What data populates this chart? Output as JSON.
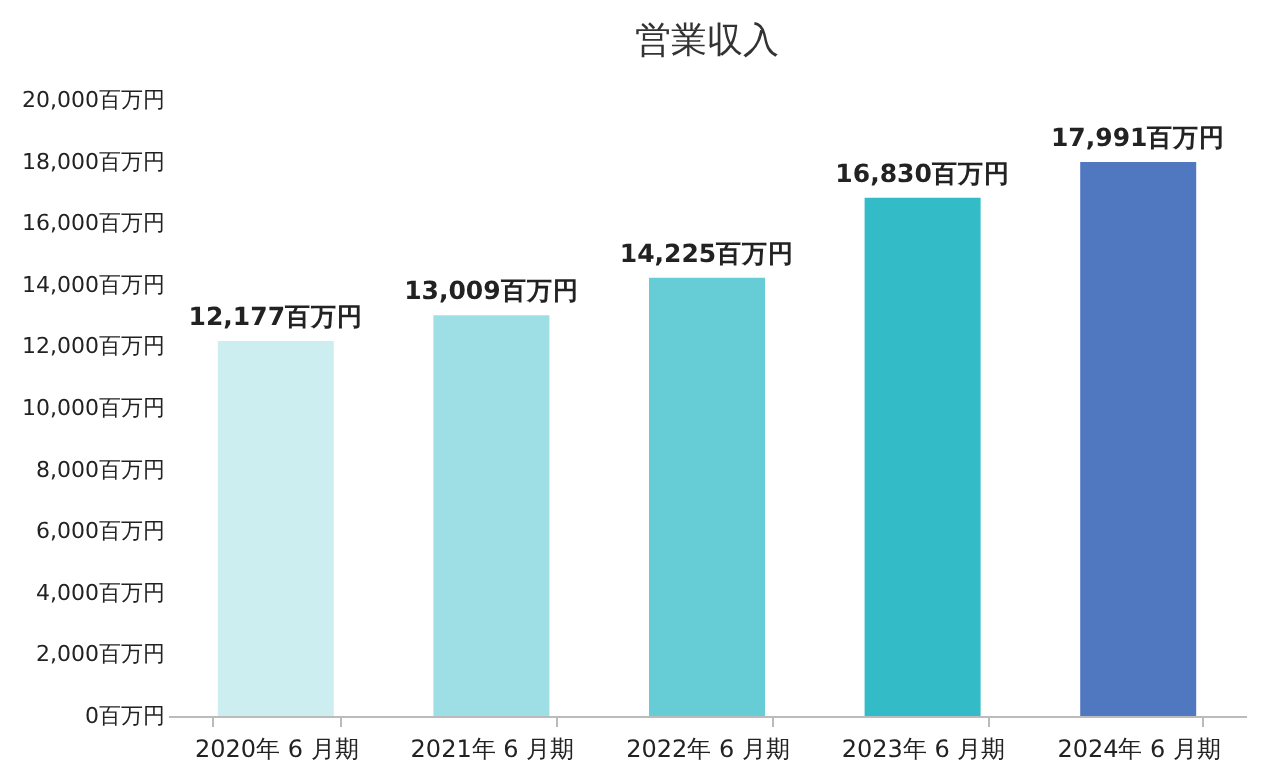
{
  "chart_data": {
    "type": "bar",
    "title": "営業収入",
    "categories": [
      "2020年 6 月期",
      "2021年 6 月期",
      "2022年 6 月期",
      "2023年 6 月期",
      "2024年 6 月期"
    ],
    "values": [
      12177,
      13009,
      14225,
      16830,
      17991
    ],
    "colors": [
      "#cdeef0",
      "#9ddfe4",
      "#66ccd5",
      "#33bcc8",
      "#4f78c0"
    ],
    "value_labels": [
      "12,177百万円",
      "13,009百万円",
      "14,225百万円",
      "16,830百万円",
      "17,991百万円"
    ],
    "ylim": [
      0,
      20000
    ],
    "yticks": [
      {
        "value": 0,
        "label": "0百万円"
      },
      {
        "value": 2000,
        "label": "2,000百万円"
      },
      {
        "value": 4000,
        "label": "4,000百万円"
      },
      {
        "value": 6000,
        "label": "6,000百万円"
      },
      {
        "value": 8000,
        "label": "8,000百万円"
      },
      {
        "value": 10000,
        "label": "10,000百万円"
      },
      {
        "value": 12000,
        "label": "12,000百万円"
      },
      {
        "value": 14000,
        "label": "14,000百万円"
      },
      {
        "value": 16000,
        "label": "16,000百万円"
      },
      {
        "value": 18000,
        "label": "18,000百万円"
      },
      {
        "value": 20000,
        "label": "20,000百万円"
      }
    ],
    "grid": false
  }
}
